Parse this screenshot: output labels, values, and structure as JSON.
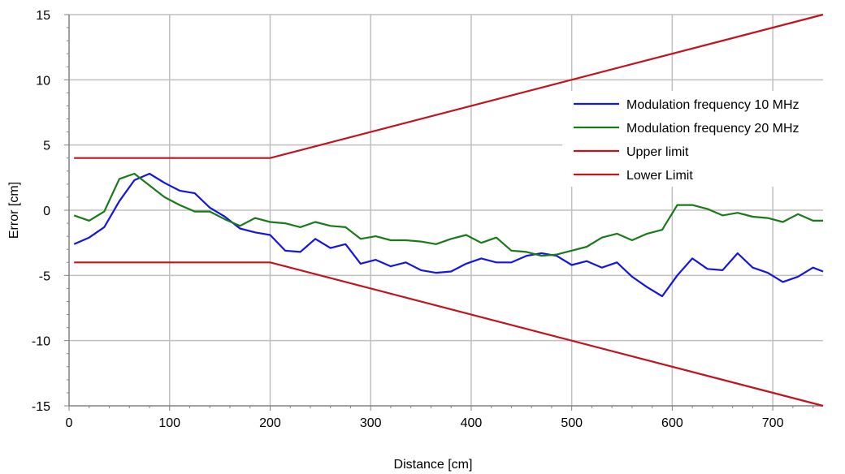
{
  "chart_data": {
    "type": "line",
    "title": "",
    "xlabel": "Distance [cm]",
    "ylabel": "Error [cm]",
    "xlim": [
      0,
      750
    ],
    "ylim": [
      -15,
      15
    ],
    "x_ticks": [
      0,
      100,
      200,
      300,
      400,
      500,
      600,
      700
    ],
    "x_tick_labels": [
      "0",
      "100",
      "200",
      "300",
      "400",
      "500",
      "600",
      "700"
    ],
    "y_ticks": [
      -15,
      -10,
      -5,
      0,
      5,
      10,
      15
    ],
    "y_tick_labels": [
      "-15",
      "-10",
      "-5",
      "0",
      "5",
      "10",
      "15"
    ],
    "grid": true,
    "legend_position": "right",
    "series": [
      {
        "name": "Modulation frequency 10 MHz",
        "color": "#1515e0",
        "x": [
          5,
          20,
          35,
          50,
          65,
          80,
          95,
          110,
          125,
          140,
          155,
          170,
          185,
          200,
          215,
          230,
          245,
          260,
          275,
          290,
          305,
          320,
          335,
          350,
          365,
          380,
          395,
          410,
          425,
          440,
          455,
          470,
          485,
          500,
          515,
          530,
          545,
          560,
          575,
          590,
          605,
          620,
          635,
          650,
          665,
          680,
          695,
          710,
          725,
          740,
          750
        ],
        "y": [
          -2.6,
          -2.1,
          -1.3,
          0.7,
          2.3,
          2.8,
          2.1,
          1.5,
          1.3,
          0.2,
          -0.5,
          -1.4,
          -1.7,
          -1.9,
          -3.1,
          -3.2,
          -2.2,
          -2.9,
          -2.6,
          -4.1,
          -3.8,
          -4.3,
          -4.0,
          -4.6,
          -4.8,
          -4.7,
          -4.1,
          -3.7,
          -4.0,
          -4.0,
          -3.5,
          -3.3,
          -3.5,
          -4.2,
          -3.9,
          -4.4,
          -4.0,
          -5.1,
          -5.9,
          -6.6,
          -5.0,
          -3.7,
          -4.5,
          -4.6,
          -3.3,
          -4.4,
          -4.8,
          -5.5,
          -5.1,
          -4.4,
          -4.7
        ]
      },
      {
        "name": "Modulation frequency 20 MHz",
        "color": "#1a7a1a",
        "x": [
          5,
          20,
          35,
          50,
          65,
          80,
          95,
          110,
          125,
          140,
          155,
          170,
          185,
          200,
          215,
          230,
          245,
          260,
          275,
          290,
          305,
          320,
          335,
          350,
          365,
          380,
          395,
          410,
          425,
          440,
          455,
          470,
          485,
          500,
          515,
          530,
          545,
          560,
          575,
          590,
          605,
          620,
          635,
          650,
          665,
          680,
          695,
          710,
          725,
          740,
          750
        ],
        "y": [
          -0.4,
          -0.8,
          -0.1,
          2.4,
          2.8,
          1.9,
          1.0,
          0.4,
          -0.1,
          -0.1,
          -0.7,
          -1.2,
          -0.6,
          -0.9,
          -1.0,
          -1.3,
          -0.9,
          -1.2,
          -1.3,
          -2.2,
          -2.0,
          -2.3,
          -2.3,
          -2.4,
          -2.6,
          -2.2,
          -1.9,
          -2.5,
          -2.1,
          -3.1,
          -3.2,
          -3.5,
          -3.4,
          -3.1,
          -2.8,
          -2.1,
          -1.8,
          -2.3,
          -1.8,
          -1.5,
          0.4,
          0.4,
          0.1,
          -0.4,
          -0.2,
          -0.5,
          -0.6,
          -0.9,
          -0.3,
          -0.8,
          -0.8
        ]
      },
      {
        "name": "Upper limit",
        "color": "#c0141e",
        "x": [
          5,
          200,
          750
        ],
        "y": [
          4,
          4,
          15
        ]
      },
      {
        "name": "Lower Limit",
        "color": "#c0141e",
        "x": [
          5,
          200,
          750
        ],
        "y": [
          -4,
          -4,
          -15
        ]
      }
    ]
  }
}
